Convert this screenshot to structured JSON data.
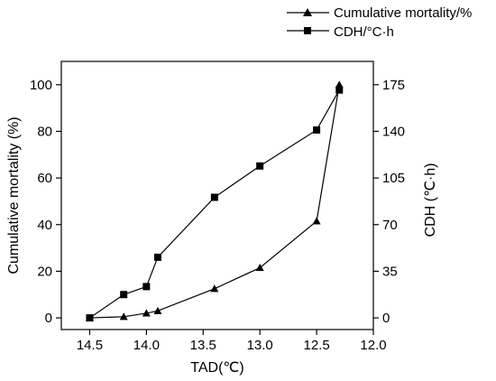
{
  "chart_data": {
    "type": "line",
    "x_label": "TAD(℃)",
    "x_range": [
      14.75,
      12.0
    ],
    "x_ticks": [
      14.5,
      14.0,
      13.5,
      13.0,
      12.5,
      12.0
    ],
    "x_tick_labels": [
      "14.5",
      "14.0",
      "13.5",
      "13.0",
      "12.5",
      "12.0"
    ],
    "y_left": {
      "label": "Cumulative mortality (%)",
      "range": [
        -5,
        110
      ],
      "ticks": [
        0,
        20,
        40,
        60,
        80,
        100
      ],
      "tick_labels": [
        "0",
        "20",
        "40",
        "60",
        "80",
        "100"
      ]
    },
    "y_right": {
      "label": "CDH (℃·h)",
      "range": [
        -8.75,
        192.5
      ],
      "ticks": [
        0,
        35,
        70,
        105,
        140,
        175
      ],
      "tick_labels": [
        "0",
        "35",
        "70",
        "105",
        "140",
        "175"
      ]
    },
    "series": [
      {
        "name": "Cumulative mortality/%",
        "axis": "left",
        "marker": "triangle",
        "x": [
          14.5,
          14.2,
          14.0,
          13.9,
          13.4,
          13.0,
          12.5,
          12.3
        ],
        "y": [
          0,
          0.5,
          2,
          3,
          12.5,
          21.5,
          41.5,
          100
        ]
      },
      {
        "name": "CDH/°C·h",
        "axis": "right",
        "marker": "square",
        "x": [
          14.5,
          14.2,
          14.0,
          13.9,
          13.4,
          13.0,
          12.5,
          12.3
        ],
        "y": [
          0,
          17.5,
          23.5,
          45.5,
          90.5,
          114,
          141,
          171
        ]
      }
    ],
    "legend_position": "top-right",
    "grid": false
  }
}
